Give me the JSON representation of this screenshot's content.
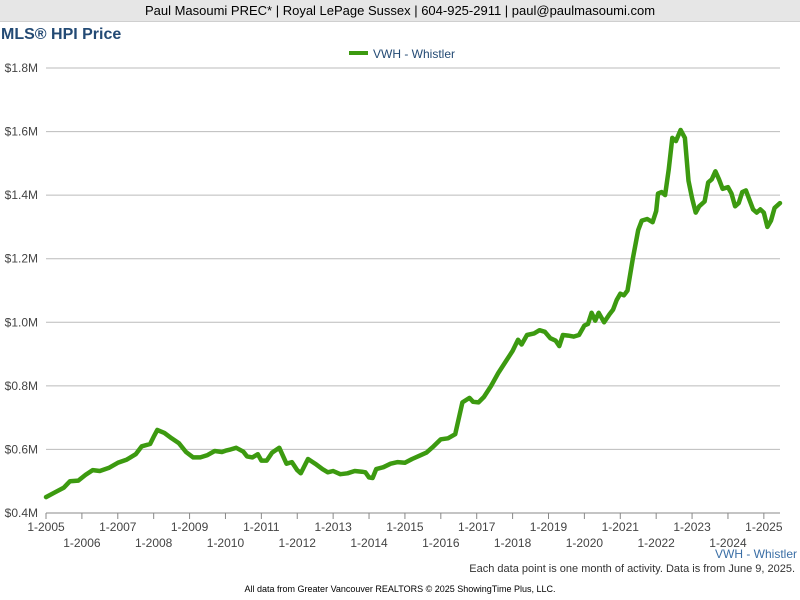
{
  "header": {
    "contact": "Paul Masoumi PREC* | Royal LePage Sussex | 604-925-2911 | paul@paulmasoumi.com"
  },
  "chart_data": {
    "type": "line",
    "title": "MLS® HPI Price",
    "xlabel": "",
    "ylabel": "",
    "legend_position": "top-center",
    "grid": true,
    "colors": {
      "series": "#3c9a10",
      "grid": "#bbbbbb",
      "title": "#234a74"
    },
    "xlim": [
      2005.0,
      2025.45
    ],
    "ylim": [
      400000,
      1800000
    ],
    "y_ticks": [
      {
        "value": 400000,
        "label": "$0.4M"
      },
      {
        "value": 600000,
        "label": "$0.6M"
      },
      {
        "value": 800000,
        "label": "$0.8M"
      },
      {
        "value": 1000000,
        "label": "$1.0M"
      },
      {
        "value": 1200000,
        "label": "$1.2M"
      },
      {
        "value": 1400000,
        "label": "$1.4M"
      },
      {
        "value": 1600000,
        "label": "$1.6M"
      },
      {
        "value": 1800000,
        "label": "$1.8M"
      }
    ],
    "x_ticks": [
      {
        "value": 2005,
        "label": "1-2005"
      },
      {
        "value": 2006,
        "label": "1-2006"
      },
      {
        "value": 2007,
        "label": "1-2007"
      },
      {
        "value": 2008,
        "label": "1-2008"
      },
      {
        "value": 2009,
        "label": "1-2009"
      },
      {
        "value": 2010,
        "label": "1-2010"
      },
      {
        "value": 2011,
        "label": "1-2011"
      },
      {
        "value": 2012,
        "label": "1-2012"
      },
      {
        "value": 2013,
        "label": "1-2013"
      },
      {
        "value": 2014,
        "label": "1-2014"
      },
      {
        "value": 2015,
        "label": "1-2015"
      },
      {
        "value": 2016,
        "label": "1-2016"
      },
      {
        "value": 2017,
        "label": "1-2017"
      },
      {
        "value": 2018,
        "label": "1-2018"
      },
      {
        "value": 2019,
        "label": "1-2019"
      },
      {
        "value": 2020,
        "label": "1-2020"
      },
      {
        "value": 2021,
        "label": "1-2021"
      },
      {
        "value": 2022,
        "label": "1-2022"
      },
      {
        "value": 2023,
        "label": "1-2023"
      },
      {
        "value": 2024,
        "label": "1-2024"
      },
      {
        "value": 2025,
        "label": "1-2025"
      }
    ],
    "series": [
      {
        "name": "VWH - Whistler",
        "points": [
          [
            2005.0,
            450000
          ],
          [
            2005.25,
            465000
          ],
          [
            2005.5,
            480000
          ],
          [
            2005.67,
            500000
          ],
          [
            2005.9,
            502000
          ],
          [
            2006.1,
            520000
          ],
          [
            2006.3,
            535000
          ],
          [
            2006.5,
            532000
          ],
          [
            2006.75,
            542000
          ],
          [
            2007.0,
            558000
          ],
          [
            2007.25,
            568000
          ],
          [
            2007.5,
            585000
          ],
          [
            2007.67,
            610000
          ],
          [
            2007.9,
            617000
          ],
          [
            2008.0,
            640000
          ],
          [
            2008.1,
            661000
          ],
          [
            2008.3,
            652000
          ],
          [
            2008.5,
            635000
          ],
          [
            2008.7,
            620000
          ],
          [
            2008.9,
            592000
          ],
          [
            2009.1,
            575000
          ],
          [
            2009.3,
            575000
          ],
          [
            2009.5,
            582000
          ],
          [
            2009.7,
            595000
          ],
          [
            2009.9,
            592000
          ],
          [
            2010.0,
            596000
          ],
          [
            2010.15,
            600000
          ],
          [
            2010.3,
            605000
          ],
          [
            2010.5,
            593000
          ],
          [
            2010.6,
            578000
          ],
          [
            2010.75,
            575000
          ],
          [
            2010.9,
            585000
          ],
          [
            2011.0,
            565000
          ],
          [
            2011.15,
            565000
          ],
          [
            2011.3,
            590000
          ],
          [
            2011.5,
            605000
          ],
          [
            2011.7,
            555000
          ],
          [
            2011.85,
            560000
          ],
          [
            2012.0,
            535000
          ],
          [
            2012.1,
            525000
          ],
          [
            2012.3,
            570000
          ],
          [
            2012.5,
            555000
          ],
          [
            2012.7,
            538000
          ],
          [
            2012.85,
            528000
          ],
          [
            2013.0,
            532000
          ],
          [
            2013.2,
            522000
          ],
          [
            2013.4,
            525000
          ],
          [
            2013.6,
            532000
          ],
          [
            2013.8,
            530000
          ],
          [
            2013.9,
            528000
          ],
          [
            2014.0,
            512000
          ],
          [
            2014.1,
            510000
          ],
          [
            2014.2,
            538000
          ],
          [
            2014.4,
            544000
          ],
          [
            2014.6,
            555000
          ],
          [
            2014.8,
            560000
          ],
          [
            2015.0,
            558000
          ],
          [
            2015.2,
            570000
          ],
          [
            2015.4,
            580000
          ],
          [
            2015.6,
            590000
          ],
          [
            2015.8,
            610000
          ],
          [
            2016.0,
            632000
          ],
          [
            2016.2,
            635000
          ],
          [
            2016.4,
            648000
          ],
          [
            2016.6,
            748000
          ],
          [
            2016.8,
            762000
          ],
          [
            2016.9,
            750000
          ],
          [
            2017.05,
            748000
          ],
          [
            2017.2,
            765000
          ],
          [
            2017.4,
            800000
          ],
          [
            2017.6,
            840000
          ],
          [
            2017.8,
            875000
          ],
          [
            2018.0,
            910000
          ],
          [
            2018.15,
            945000
          ],
          [
            2018.25,
            930000
          ],
          [
            2018.4,
            960000
          ],
          [
            2018.6,
            965000
          ],
          [
            2018.75,
            975000
          ],
          [
            2018.9,
            970000
          ],
          [
            2019.05,
            950000
          ],
          [
            2019.2,
            942000
          ],
          [
            2019.3,
            925000
          ],
          [
            2019.4,
            960000
          ],
          [
            2019.55,
            958000
          ],
          [
            2019.7,
            955000
          ],
          [
            2019.85,
            960000
          ],
          [
            2020.0,
            990000
          ],
          [
            2020.1,
            995000
          ],
          [
            2020.2,
            1030000
          ],
          [
            2020.3,
            1005000
          ],
          [
            2020.4,
            1030000
          ],
          [
            2020.55,
            1000000
          ],
          [
            2020.7,
            1025000
          ],
          [
            2020.8,
            1040000
          ],
          [
            2020.9,
            1070000
          ],
          [
            2021.0,
            1090000
          ],
          [
            2021.1,
            1085000
          ],
          [
            2021.2,
            1100000
          ],
          [
            2021.35,
            1200000
          ],
          [
            2021.5,
            1290000
          ],
          [
            2021.6,
            1320000
          ],
          [
            2021.75,
            1325000
          ],
          [
            2021.9,
            1315000
          ],
          [
            2022.0,
            1350000
          ],
          [
            2022.05,
            1405000
          ],
          [
            2022.15,
            1410000
          ],
          [
            2022.25,
            1400000
          ],
          [
            2022.35,
            1480000
          ],
          [
            2022.45,
            1580000
          ],
          [
            2022.55,
            1570000
          ],
          [
            2022.68,
            1605000
          ],
          [
            2022.8,
            1580000
          ],
          [
            2022.9,
            1445000
          ],
          [
            2023.0,
            1390000
          ],
          [
            2023.1,
            1345000
          ],
          [
            2023.2,
            1365000
          ],
          [
            2023.35,
            1380000
          ],
          [
            2023.45,
            1440000
          ],
          [
            2023.55,
            1450000
          ],
          [
            2023.65,
            1475000
          ],
          [
            2023.75,
            1450000
          ],
          [
            2023.85,
            1420000
          ],
          [
            2024.0,
            1425000
          ],
          [
            2024.1,
            1405000
          ],
          [
            2024.2,
            1365000
          ],
          [
            2024.3,
            1375000
          ],
          [
            2024.4,
            1410000
          ],
          [
            2024.5,
            1415000
          ],
          [
            2024.6,
            1385000
          ],
          [
            2024.7,
            1355000
          ],
          [
            2024.8,
            1345000
          ],
          [
            2024.9,
            1355000
          ],
          [
            2025.0,
            1345000
          ],
          [
            2025.1,
            1300000
          ],
          [
            2025.2,
            1320000
          ],
          [
            2025.3,
            1360000
          ],
          [
            2025.45,
            1375000
          ]
        ]
      }
    ],
    "series_end_label": "VWH - Whistler"
  },
  "notes": {
    "activity": "Each data point is one month of activity. Data is from June 9, 2025.",
    "copyright": "All data from Greater Vancouver REALTORS © 2025 ShowingTime Plus, LLC."
  }
}
